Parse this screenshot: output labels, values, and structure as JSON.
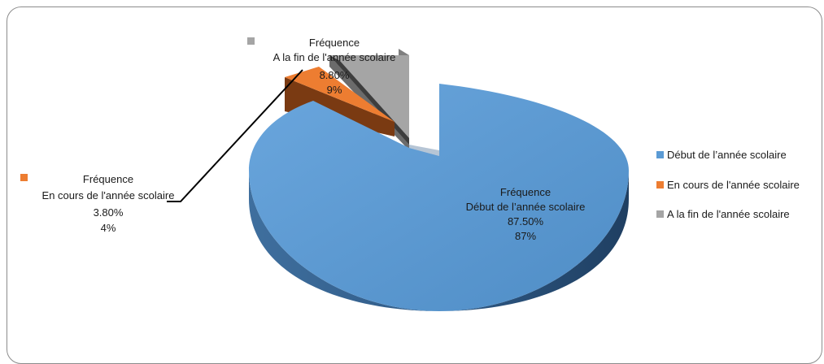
{
  "chart_data": {
    "type": "pie",
    "title": "",
    "legend_position": "right",
    "slices": [
      {
        "name": "Début de l’année scolaire",
        "series_label": "Fréquence",
        "value": 87.5,
        "value_label": "87.50%",
        "percent_label": "87%",
        "color": "#5B9BD5"
      },
      {
        "name": "En cours de l'année scolaire",
        "series_label": "Fréquence",
        "value": 3.8,
        "value_label": "3.80%",
        "percent_label": "4%",
        "color": "#ED7D31"
      },
      {
        "name": "A la fin de l'année scolaire",
        "series_label": "Fréquence",
        "value": 8.8,
        "value_label": "8.80%",
        "percent_label": "9%",
        "color": "#A5A5A5"
      }
    ]
  }
}
